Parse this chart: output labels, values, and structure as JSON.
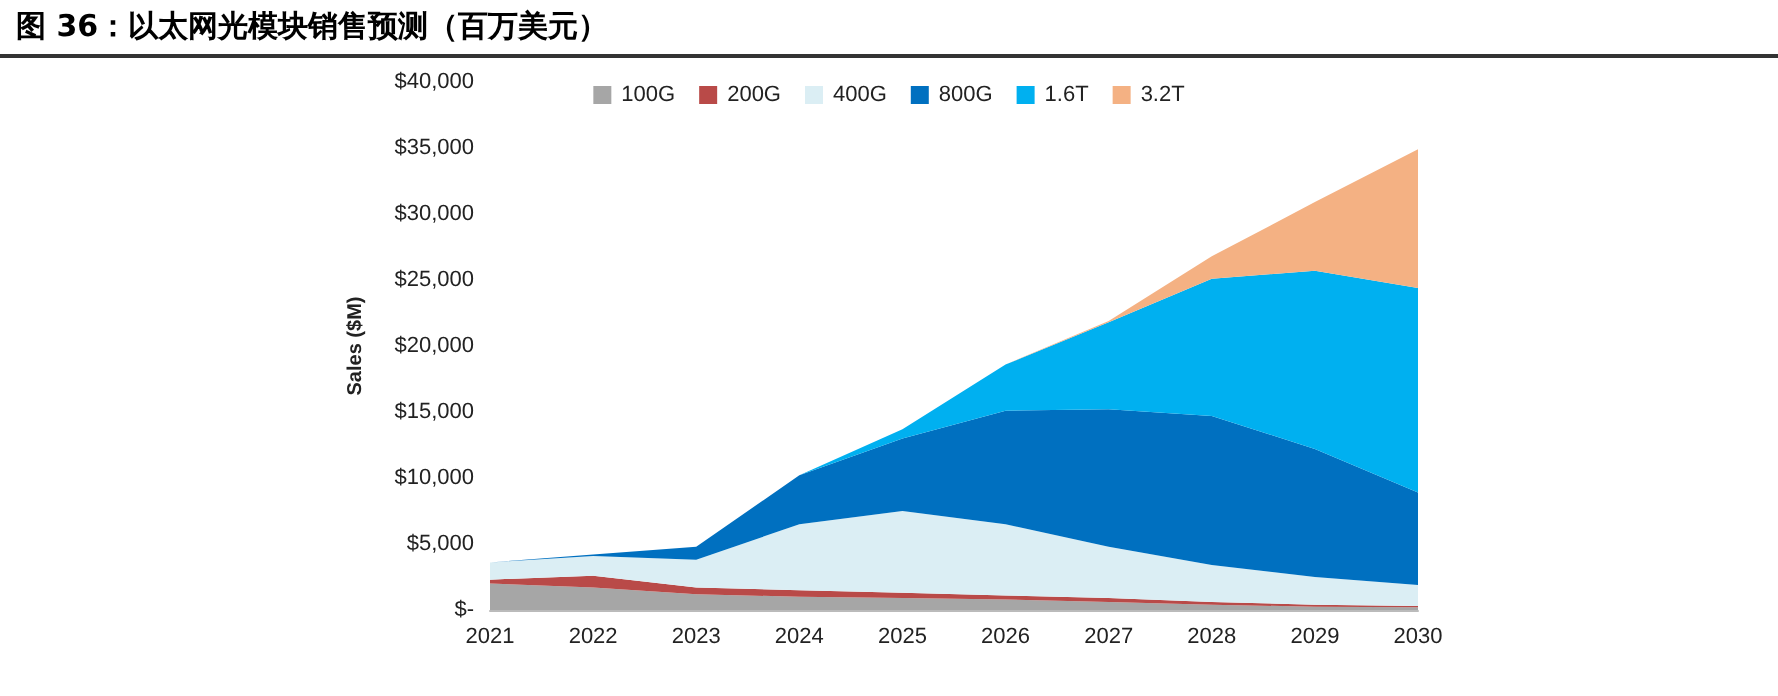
{
  "chart_data": {
    "type": "area",
    "stacked": true,
    "title": "图 36：以太网光模块销售预测（百万美元）",
    "ylabel": "Sales ($M)",
    "categories": [
      "2021",
      "2022",
      "2023",
      "2024",
      "2025",
      "2026",
      "2027",
      "2028",
      "2029",
      "2030"
    ],
    "series": [
      {
        "name": "100G",
        "color": "#a6a6a6",
        "values": [
          2000,
          1700,
          1200,
          1000,
          900,
          800,
          600,
          400,
          250,
          200
        ]
      },
      {
        "name": "200G",
        "color": "#b94a48",
        "values": [
          300,
          900,
          500,
          500,
          400,
          300,
          300,
          200,
          150,
          100
        ]
      },
      {
        "name": "400G",
        "color": "#dbeef4",
        "values": [
          1300,
          1500,
          2100,
          5000,
          6200,
          5400,
          3900,
          2800,
          2100,
          1600
        ]
      },
      {
        "name": "800G",
        "color": "#0070c0",
        "values": [
          0,
          100,
          1000,
          3700,
          5500,
          8600,
          10400,
          11300,
          9700,
          7000
        ]
      },
      {
        "name": "1.6T",
        "color": "#00b0f0",
        "values": [
          0,
          0,
          0,
          0,
          700,
          3500,
          6600,
          10400,
          13500,
          15500
        ]
      },
      {
        "name": "3.2T",
        "color": "#f4b183",
        "values": [
          0,
          0,
          0,
          0,
          0,
          0,
          100,
          1700,
          5200,
          10500
        ]
      }
    ],
    "ylim": [
      0,
      40000
    ],
    "yticks": [
      {
        "value": 0,
        "label": "$-"
      },
      {
        "value": 5000,
        "label": "$5,000"
      },
      {
        "value": 10000,
        "label": "$10,000"
      },
      {
        "value": 15000,
        "label": "$15,000"
      },
      {
        "value": 20000,
        "label": "$20,000"
      },
      {
        "value": 25000,
        "label": "$25,000"
      },
      {
        "value": 30000,
        "label": "$30,000"
      },
      {
        "value": 35000,
        "label": "$35,000"
      },
      {
        "value": 40000,
        "label": "$40,000"
      }
    ],
    "grid": false,
    "legend": "top",
    "marker": "none"
  }
}
